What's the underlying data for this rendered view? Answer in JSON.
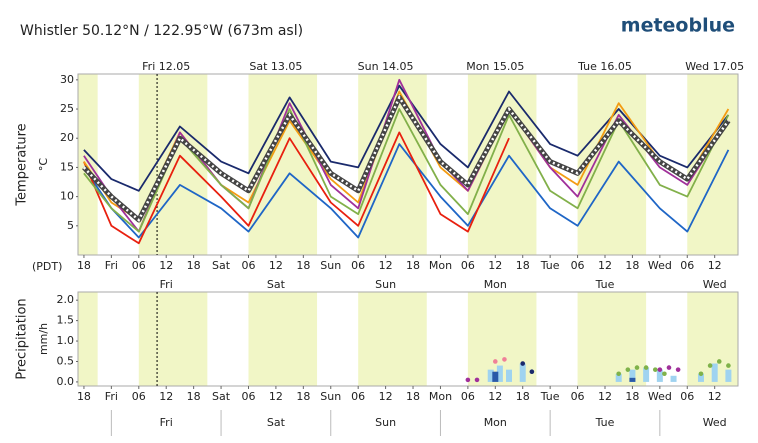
{
  "header": {
    "title": "Whistler  50.12°N / 122.95°W (673m asl)",
    "logo": "meteoblue"
  },
  "chart_data": [
    {
      "type": "line",
      "ylabel": "Temperature",
      "yunit": "°C",
      "timezone": "(PDT)",
      "xlim": [
        -1.3,
        143.1
      ],
      "ylim": [
        0,
        31
      ],
      "yticks": [
        5,
        10,
        15,
        20,
        25,
        30
      ],
      "xticks": [
        {
          "value": 0,
          "label": "18"
        },
        {
          "value": 6,
          "label": "Fri"
        },
        {
          "value": 12,
          "label": "06"
        },
        {
          "value": 18,
          "label": "12"
        },
        {
          "value": 24,
          "label": "18"
        },
        {
          "value": 30,
          "label": "Sat"
        },
        {
          "value": 36,
          "label": "06"
        },
        {
          "value": 42,
          "label": "12"
        },
        {
          "value": 48,
          "label": "18"
        },
        {
          "value": 54,
          "label": "Sun"
        },
        {
          "value": 60,
          "label": "06"
        },
        {
          "value": 66,
          "label": "12"
        },
        {
          "value": 72,
          "label": "18"
        },
        {
          "value": 78,
          "label": "Mon"
        },
        {
          "value": 84,
          "label": "06"
        },
        {
          "value": 90,
          "label": "12"
        },
        {
          "value": 96,
          "label": "18"
        },
        {
          "value": 102,
          "label": "Tue"
        },
        {
          "value": 108,
          "label": "06"
        },
        {
          "value": 114,
          "label": "12"
        },
        {
          "value": 120,
          "label": "18"
        },
        {
          "value": 126,
          "label": "Wed"
        },
        {
          "value": 132,
          "label": "06"
        },
        {
          "value": 138,
          "label": "12"
        }
      ],
      "day_labels": [
        "Fri 12.05",
        "Sat 13.05",
        "Sun 14.05",
        "Mon 15.05",
        "Tue 16.05",
        "Wed 17.05"
      ],
      "x": [
        0,
        6,
        12,
        21,
        30,
        36,
        45,
        54,
        60,
        69,
        78,
        84,
        93,
        102,
        108,
        117,
        126,
        132,
        141
      ],
      "series": [
        {
          "color": "#1a2a6c",
          "values": [
            18,
            13,
            11,
            22,
            16,
            14,
            27,
            16,
            15,
            29,
            19,
            15,
            28,
            19,
            17,
            25,
            17,
            15,
            24
          ]
        },
        {
          "color": "#1f66c6",
          "values": [
            15,
            8,
            3,
            12,
            8,
            4,
            14,
            8,
            3,
            19,
            10,
            5,
            17,
            8,
            5,
            16,
            8,
            4,
            18
          ]
        },
        {
          "color": "#e8200f",
          "values": [
            16,
            5,
            2,
            17,
            10,
            5,
            20,
            9,
            5,
            21,
            7,
            4,
            20,
            null,
            null,
            null,
            null,
            null,
            null
          ]
        },
        {
          "color": "#f39c12",
          "values": [
            16,
            9,
            6,
            21,
            12,
            9,
            23,
            13,
            9,
            28,
            15,
            11,
            25,
            15,
            12,
            26,
            16,
            13,
            25
          ]
        },
        {
          "color": "#a0309a",
          "values": [
            17,
            10,
            4,
            21,
            12,
            8,
            26,
            12,
            8,
            30,
            16,
            11,
            25,
            15,
            10,
            24,
            15,
            12,
            23
          ]
        },
        {
          "color": "#82b04a",
          "values": [
            14,
            8,
            4,
            20,
            12,
            8,
            25,
            10,
            7,
            25,
            12,
            7,
            24,
            11,
            8,
            23,
            12,
            10,
            24
          ]
        },
        {
          "color": "#444444",
          "dashed": true,
          "values": [
            15,
            10,
            6,
            20,
            14,
            11,
            24,
            14,
            11,
            27,
            16,
            12,
            25,
            16,
            14,
            23,
            16,
            13,
            23
          ]
        }
      ]
    },
    {
      "type": "precip",
      "ylabel": "Precipitation",
      "yunit": "mm/h",
      "xlim": [
        -1.3,
        143.1
      ],
      "ylim": [
        -0.1,
        2.2
      ],
      "yticks": [
        {
          "value": 0,
          "label": "0.0"
        },
        {
          "value": 0.5,
          "label": "0.5"
        },
        {
          "value": 1,
          "label": "1.0"
        },
        {
          "value": 1.5,
          "label": "1.5"
        },
        {
          "value": 2,
          "label": "2.0"
        }
      ],
      "xticks": [
        {
          "value": 0,
          "label": "18"
        },
        {
          "value": 6,
          "label": "Fri"
        },
        {
          "value": 12,
          "label": "06"
        },
        {
          "value": 18,
          "label": "12"
        },
        {
          "value": 24,
          "label": "18"
        },
        {
          "value": 30,
          "label": "Sat"
        },
        {
          "value": 36,
          "label": "06"
        },
        {
          "value": 42,
          "label": "12"
        },
        {
          "value": 48,
          "label": "18"
        },
        {
          "value": 54,
          "label": "Sun"
        },
        {
          "value": 60,
          "label": "06"
        },
        {
          "value": 66,
          "label": "12"
        },
        {
          "value": 72,
          "label": "18"
        },
        {
          "value": 78,
          "label": "Mon"
        },
        {
          "value": 84,
          "label": "06"
        },
        {
          "value": 90,
          "label": "12"
        },
        {
          "value": 96,
          "label": "18"
        },
        {
          "value": 102,
          "label": "Tue"
        },
        {
          "value": 108,
          "label": "06"
        },
        {
          "value": 114,
          "label": "12"
        },
        {
          "value": 120,
          "label": "18"
        },
        {
          "value": 126,
          "label": "Wed"
        },
        {
          "value": 132,
          "label": "06"
        },
        {
          "value": 138,
          "label": "12"
        }
      ],
      "day_labels": [
        "Fri",
        "Sat",
        "Sun",
        "Mon",
        "Tue",
        "Wed"
      ],
      "series": [
        {
          "kind": "bar",
          "color": "#9fd3f0",
          "x": [
            89,
            91,
            93,
            96,
            117,
            120,
            123,
            126,
            129,
            135,
            138,
            141
          ],
          "values": [
            0.3,
            0.4,
            0.3,
            0.45,
            0.2,
            0.3,
            0.35,
            0.3,
            0.15,
            0.2,
            0.45,
            0.3
          ]
        },
        {
          "kind": "bar",
          "color": "#2a5aa8",
          "x": [
            90,
            120
          ],
          "values": [
            0.25,
            0.1
          ]
        },
        {
          "kind": "dot",
          "color": "#7fb24a",
          "x": [
            117,
            119,
            121,
            123,
            125,
            127,
            135,
            137,
            139,
            141
          ],
          "values": [
            0.2,
            0.3,
            0.35,
            0.35,
            0.3,
            0.2,
            0.2,
            0.4,
            0.5,
            0.4
          ]
        },
        {
          "kind": "dot",
          "color": "#a0309a",
          "x": [
            84,
            86,
            126,
            128,
            130
          ],
          "values": [
            0.05,
            0.05,
            0.3,
            0.35,
            0.3
          ]
        },
        {
          "kind": "dot",
          "color": "#f08098",
          "x": [
            90,
            92
          ],
          "values": [
            0.5,
            0.55
          ]
        },
        {
          "kind": "dot",
          "color": "#1a2a6c",
          "x": [
            96,
            98
          ],
          "values": [
            0.45,
            0.25
          ]
        }
      ]
    }
  ]
}
